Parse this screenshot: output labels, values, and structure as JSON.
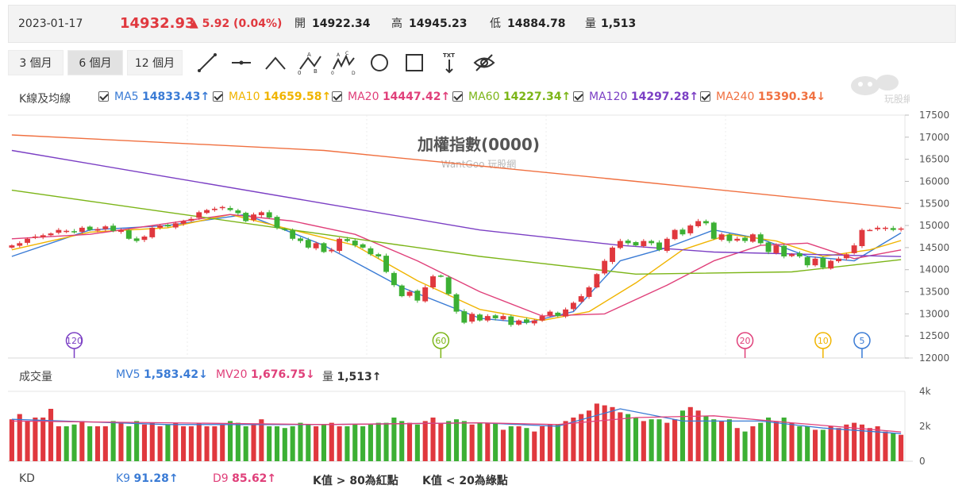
{
  "quote": {
    "date": "2023-01-17",
    "price": "14932.93",
    "change": "▲ 5.92 (0.04%)",
    "open_label": "開",
    "open": "14922.34",
    "high_label": "高",
    "high": "14945.23",
    "low_label": "低",
    "low": "14884.78",
    "vol_label": "量",
    "vol": "1,513"
  },
  "toolbar": {
    "periods": [
      "3 個月",
      "6 個月",
      "12 個月"
    ],
    "active_period": "6 個月",
    "tools": [
      "line-tool-icon",
      "horizontal-line-tool-icon",
      "angle-tool-icon",
      "abc-wave-tool-icon",
      "abcde-wave-tool-icon",
      "circle-tool-icon",
      "rectangle-tool-icon",
      "text-tool-icon",
      "hide-icon"
    ]
  },
  "ma": {
    "label": "K線及均線",
    "items": [
      {
        "name": "MA5",
        "value": "14833.43↑",
        "color": "#3a7bd5"
      },
      {
        "name": "MA10",
        "value": "14659.58↑",
        "color": "#f0b400"
      },
      {
        "name": "MA20",
        "value": "14447.42↑",
        "color": "#e0407a"
      },
      {
        "name": "MA60",
        "value": "14227.34↑",
        "color": "#7cb518"
      },
      {
        "name": "MA120",
        "value": "14297.28↑",
        "color": "#7b3fc4"
      },
      {
        "name": "MA240",
        "value": "15390.34↓",
        "color": "#f07040"
      }
    ]
  },
  "logo_text": "玩股網",
  "volume_row": {
    "label": "成交量",
    "mv5_label": "MV5",
    "mv5": "1,583.42↓",
    "mv20_label": "MV20",
    "mv20": "1,676.75↓",
    "vol_label": "量",
    "vol": "1,513↑"
  },
  "kd_row": {
    "label": "KD",
    "k_label": "K9",
    "k": "91.28↑",
    "d_label": "D9",
    "d": "85.62↑",
    "note1": "K值 > 80為紅點",
    "note2": "K值 < 20為綠點"
  },
  "chart_data": {
    "type": "candlestick",
    "title": "加權指數(0000)",
    "watermark": "WantGoo 玩股網",
    "y_ticks": [
      12000,
      12500,
      13000,
      13500,
      14000,
      14500,
      15000,
      15500,
      16000,
      16500,
      17000,
      17500
    ],
    "ylim": [
      12000,
      17500
    ],
    "volume_ticks": [
      "4k",
      "2k",
      "0"
    ],
    "volume_ylim": [
      0,
      4000
    ],
    "closes": [
      14550,
      14600,
      14700,
      14750,
      14780,
      14820,
      14900,
      14880,
      14850,
      14950,
      14900,
      14920,
      14980,
      14880,
      14900,
      14700,
      14650,
      14750,
      14950,
      15000,
      14980,
      15050,
      15100,
      15150,
      15300,
      15350,
      15380,
      15420,
      15350,
      15280,
      15100,
      15250,
      15300,
      15180,
      14950,
      14900,
      14700,
      14650,
      14500,
      14600,
      14400,
      14450,
      14700,
      14650,
      14550,
      14500,
      14350,
      14300,
      13950,
      13650,
      13400,
      13500,
      13300,
      13600,
      13850,
      13850,
      13450,
      13050,
      12800,
      13000,
      12850,
      12950,
      12900,
      12950,
      12750,
      12850,
      12800,
      12850,
      12950,
      13050,
      12950,
      13100,
      13250,
      13400,
      13600,
      13900,
      14200,
      14500,
      14650,
      14600,
      14550,
      14650,
      14600,
      14450,
      14700,
      14900,
      14800,
      15000,
      15100,
      15050,
      14700,
      14800,
      14650,
      14700,
      14650,
      14800,
      14600,
      14400,
      14550,
      14300,
      14350,
      14300,
      14100,
      14250,
      14050,
      14200,
      14250,
      14350,
      14550,
      14900,
      14900,
      14950,
      14950,
      14900,
      14932.93
    ],
    "volumes": [
      2400,
      2700,
      2300,
      2500,
      2500,
      3000,
      2000,
      2000,
      2100,
      2300,
      2000,
      2000,
      2000,
      2300,
      2200,
      2000,
      2300,
      2100,
      2200,
      2000,
      2100,
      2200,
      2000,
      2000,
      2200,
      2000,
      2000,
      2100,
      2300,
      2200,
      2000,
      2100,
      2400,
      2000,
      2000,
      1900,
      2000,
      2200,
      2100,
      2000,
      2100,
      2200,
      2000,
      2000,
      2100,
      2000,
      2100,
      2200,
      2200,
      2500,
      2300,
      2200,
      2100,
      2300,
      2500,
      2200,
      2300,
      2400,
      2300,
      2100,
      2200,
      2200,
      2200,
      1800,
      2000,
      2000,
      1900,
      1700,
      2000,
      2100,
      2100,
      2300,
      2500,
      2700,
      2900,
      3300,
      3200,
      3100,
      2800,
      2700,
      2500,
      2300,
      2400,
      2400,
      2200,
      2400,
      2900,
      3100,
      2900,
      2600,
      2400,
      2300,
      2400,
      1900,
      1700,
      2000,
      2200,
      2500,
      2300,
      2500,
      2200,
      2000,
      2000,
      1800,
      1800,
      2000,
      1900,
      2100,
      2200,
      2100,
      1900,
      2000,
      1700,
      1600,
      1513
    ],
    "moving_averages": {
      "MA5": [
        [
          0,
          14300
        ],
        [
          10,
          14900
        ],
        [
          20,
          15000
        ],
        [
          30,
          15250
        ],
        [
          40,
          14550
        ],
        [
          50,
          13600
        ],
        [
          60,
          12900
        ],
        [
          66,
          12800
        ],
        [
          72,
          13050
        ],
        [
          78,
          14200
        ],
        [
          84,
          14500
        ],
        [
          90,
          14900
        ],
        [
          96,
          14700
        ],
        [
          102,
          14300
        ],
        [
          108,
          14200
        ],
        [
          114,
          14833.43
        ]
      ],
      "MA10": [
        [
          0,
          14450
        ],
        [
          10,
          14850
        ],
        [
          20,
          14950
        ],
        [
          28,
          15250
        ],
        [
          36,
          14900
        ],
        [
          44,
          14550
        ],
        [
          52,
          13750
        ],
        [
          60,
          13100
        ],
        [
          68,
          12850
        ],
        [
          74,
          13050
        ],
        [
          80,
          13700
        ],
        [
          86,
          14450
        ],
        [
          92,
          14800
        ],
        [
          98,
          14650
        ],
        [
          104,
          14300
        ],
        [
          110,
          14450
        ],
        [
          114,
          14659.58
        ]
      ],
      "MA20": [
        [
          0,
          14700
        ],
        [
          10,
          14800
        ],
        [
          20,
          15050
        ],
        [
          28,
          15250
        ],
        [
          36,
          15100
        ],
        [
          44,
          14800
        ],
        [
          52,
          14200
        ],
        [
          60,
          13500
        ],
        [
          68,
          12950
        ],
        [
          76,
          13000
        ],
        [
          84,
          13650
        ],
        [
          90,
          14200
        ],
        [
          96,
          14550
        ],
        [
          102,
          14600
        ],
        [
          108,
          14250
        ],
        [
          114,
          14447.42
        ]
      ],
      "MA60": [
        [
          0,
          15800
        ],
        [
          20,
          15300
        ],
        [
          40,
          14800
        ],
        [
          60,
          14300
        ],
        [
          80,
          13900
        ],
        [
          100,
          13950
        ],
        [
          114,
          14227.34
        ]
      ],
      "MA120": [
        [
          0,
          16700
        ],
        [
          20,
          16100
        ],
        [
          40,
          15500
        ],
        [
          60,
          14900
        ],
        [
          78,
          14550
        ],
        [
          90,
          14400
        ],
        [
          114,
          14297.28
        ]
      ],
      "MA240": [
        [
          0,
          17050
        ],
        [
          40,
          16700
        ],
        [
          80,
          16000
        ],
        [
          114,
          15390.34
        ]
      ]
    },
    "volume_moving_averages": {
      "MV5": [
        [
          0,
          2400
        ],
        [
          20,
          2100
        ],
        [
          40,
          2100
        ],
        [
          60,
          2200
        ],
        [
          70,
          2000
        ],
        [
          78,
          3000
        ],
        [
          86,
          2300
        ],
        [
          96,
          2300
        ],
        [
          104,
          1900
        ],
        [
          114,
          1583.42
        ]
      ],
      "MV20": [
        [
          0,
          2300
        ],
        [
          20,
          2200
        ],
        [
          40,
          2100
        ],
        [
          60,
          2200
        ],
        [
          70,
          2100
        ],
        [
          80,
          2500
        ],
        [
          90,
          2600
        ],
        [
          100,
          2200
        ],
        [
          114,
          1676.75
        ]
      ]
    },
    "markers": [
      {
        "label": "120",
        "index": 8,
        "color": "#7b3fc4"
      },
      {
        "label": "60",
        "index": 55,
        "color": "#7cb518"
      },
      {
        "label": "20",
        "index": 94,
        "color": "#e0407a"
      },
      {
        "label": "10",
        "index": 104,
        "color": "#f0b400"
      },
      {
        "label": "5",
        "index": 109,
        "color": "#3a7bd5"
      }
    ],
    "up_color": "#e0383e",
    "down_color": "#3cb034"
  }
}
